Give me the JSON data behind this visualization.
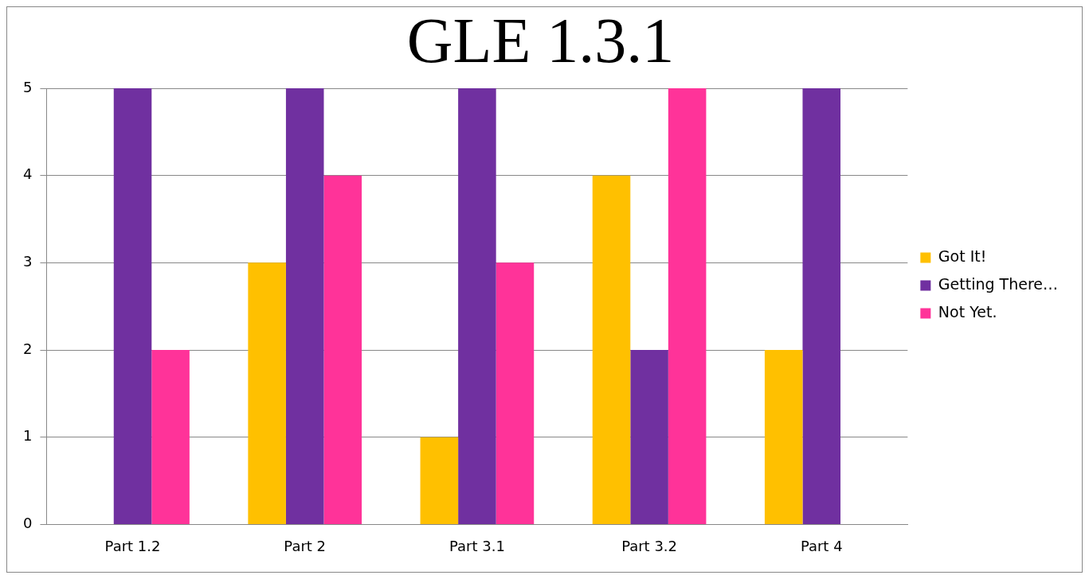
{
  "chart_data": {
    "type": "bar",
    "title": "GLE 1.3.1",
    "categories": [
      "Part 1.2",
      "Part 2",
      "Part 3.1",
      "Part 3.2",
      "Part 4"
    ],
    "series": [
      {
        "name": "Got It!",
        "color": "#ffc000",
        "values": [
          0,
          3,
          1,
          4,
          2
        ]
      },
      {
        "name": "Getting There…",
        "color": "#7030a0",
        "values": [
          5,
          5,
          5,
          2,
          5
        ]
      },
      {
        "name": "Not Yet.",
        "color": "#ff3399",
        "values": [
          2,
          4,
          3,
          5,
          0
        ]
      }
    ],
    "ylim": [
      0,
      5
    ],
    "yticks": [
      0,
      1,
      2,
      3,
      4,
      5
    ],
    "grid": "y",
    "legend": "right"
  }
}
